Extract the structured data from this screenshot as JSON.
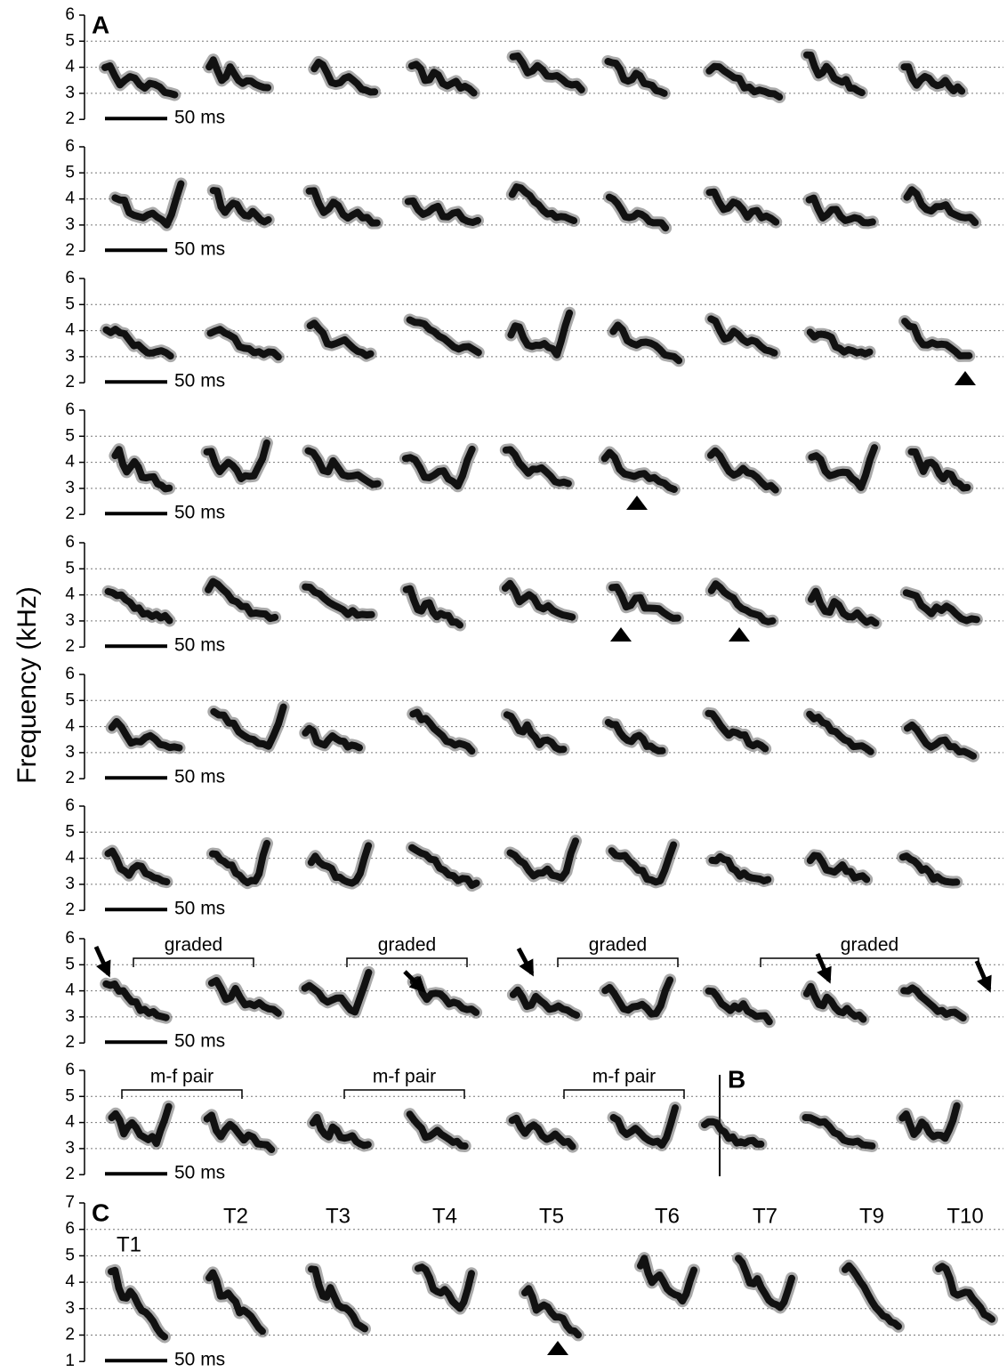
{
  "y_axis_label": "Frequency (kHz)",
  "panel_a": {
    "label": "A",
    "rows": [
      {
        "yticks": [
          2,
          3,
          4,
          5,
          6
        ],
        "scale_bar": "50 ms"
      },
      {
        "yticks": [
          2,
          3,
          4,
          5,
          6
        ],
        "scale_bar": "50 ms"
      },
      {
        "yticks": [
          2,
          3,
          4,
          5,
          6
        ],
        "scale_bar": "50 ms"
      },
      {
        "yticks": [
          2,
          3,
          4,
          5,
          6
        ],
        "scale_bar": "50 ms"
      },
      {
        "yticks": [
          2,
          3,
          4,
          5,
          6
        ],
        "scale_bar": "50 ms"
      },
      {
        "yticks": [
          2,
          3,
          4,
          5,
          6
        ],
        "scale_bar": "50 ms"
      },
      {
        "yticks": [
          2,
          3,
          4,
          5,
          6
        ],
        "scale_bar": "50 ms"
      },
      {
        "yticks": [
          2,
          3,
          4,
          5,
          6
        ],
        "scale_bar": "50 ms",
        "brackets": [
          "graded",
          "graded",
          "graded",
          "graded"
        ]
      },
      {
        "yticks": [
          2,
          3,
          4,
          5,
          6
        ],
        "scale_bar": "50 ms",
        "brackets": [
          "m-f pair",
          "m-f pair",
          "m-f pair"
        ]
      }
    ]
  },
  "panel_b": {
    "label": "B"
  },
  "panel_c": {
    "label": "C",
    "yticks": [
      1,
      2,
      3,
      4,
      5,
      6,
      7
    ],
    "scale_bar": "50 ms",
    "call_types": [
      "T1",
      "T2",
      "T3",
      "T4",
      "T5",
      "T6",
      "T7",
      "T9",
      "T10"
    ]
  }
}
